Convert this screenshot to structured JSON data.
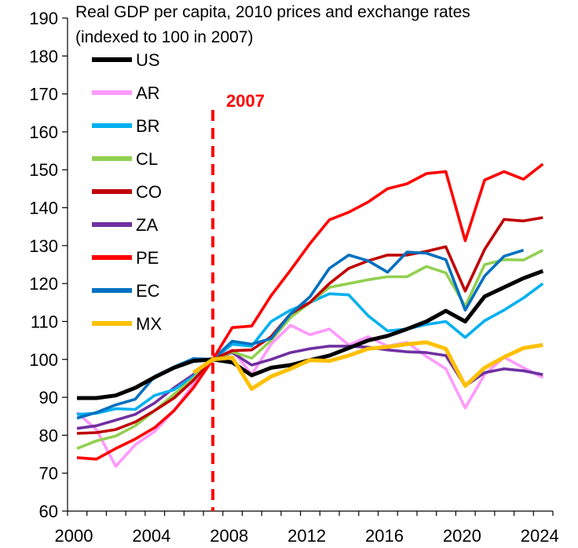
{
  "chart_data": {
    "type": "line",
    "title": "Real GDP per capita, 2010 prices and exchange rates",
    "subtitle": "(indexed to 100 in 2007)",
    "xlabel": "",
    "ylabel": "",
    "xlim": [
      2000,
      2025
    ],
    "ylim": [
      60,
      190
    ],
    "x_ticks": [
      2000,
      2004,
      2008,
      2012,
      2016,
      2020,
      2024
    ],
    "y_ticks": [
      60,
      70,
      80,
      90,
      100,
      110,
      120,
      130,
      140,
      150,
      160,
      170,
      180,
      190
    ],
    "grid": false,
    "legend_position": "top-left",
    "reference_line": {
      "x": 2007,
      "label": "2007",
      "color": "#ff0000",
      "style": "dashed"
    },
    "series": [
      {
        "name": "US",
        "color": "#000000",
        "x": [
          2000,
          2001,
          2002,
          2003,
          2004,
          2005,
          2006,
          2007,
          2008,
          2009,
          2010,
          2011,
          2012,
          2013,
          2014,
          2015,
          2016,
          2017,
          2018,
          2019,
          2020,
          2021,
          2022,
          2023,
          2024
        ],
        "values": [
          89.8,
          89.8,
          90.5,
          92.5,
          95.3,
          97.8,
          99.6,
          100,
          99.2,
          95.8,
          97.8,
          98.5,
          99.8,
          101,
          103,
          105,
          106.2,
          108,
          110,
          112.8,
          110,
          116.6,
          119,
          121.4,
          123.3
        ]
      },
      {
        "name": "AR",
        "color": "#ff99ff",
        "x": [
          2000,
          2001,
          2002,
          2003,
          2004,
          2005,
          2006,
          2007,
          2008,
          2009,
          2010,
          2011,
          2012,
          2013,
          2014,
          2015,
          2016,
          2017,
          2018,
          2019,
          2020,
          2021,
          2022,
          2023,
          2024
        ],
        "values": [
          86,
          81.5,
          71.8,
          77.5,
          81,
          86.5,
          93.5,
          100,
          102.5,
          96,
          104,
          109,
          106.5,
          108,
          103.8,
          106,
          103.5,
          104.5,
          100.8,
          97.5,
          87.2,
          96,
          100.6,
          97.8,
          95.2
        ]
      },
      {
        "name": "BR",
        "color": "#00b0f0",
        "x": [
          2000,
          2001,
          2002,
          2003,
          2004,
          2005,
          2006,
          2007,
          2008,
          2009,
          2010,
          2011,
          2012,
          2013,
          2014,
          2015,
          2016,
          2017,
          2018,
          2019,
          2020,
          2021,
          2022,
          2023,
          2024
        ],
        "values": [
          85.5,
          85.8,
          87,
          86.8,
          90.5,
          92,
          95.5,
          100,
          104,
          103.5,
          110,
          113,
          115,
          117.3,
          117,
          111.5,
          107.5,
          108,
          109.2,
          110,
          105.8,
          110.2,
          113,
          116.2,
          120
        ]
      },
      {
        "name": "CL",
        "color": "#92d050",
        "x": [
          2000,
          2001,
          2002,
          2003,
          2004,
          2005,
          2006,
          2007,
          2008,
          2009,
          2010,
          2011,
          2012,
          2013,
          2014,
          2015,
          2016,
          2017,
          2018,
          2019,
          2020,
          2021,
          2022,
          2023,
          2024
        ],
        "values": [
          76.5,
          78.5,
          79.8,
          82.5,
          86.5,
          90.8,
          95,
          100,
          102,
          100.3,
          105,
          111,
          115,
          119,
          120,
          121,
          121.8,
          121.8,
          124.5,
          122.8,
          114,
          125,
          126.3,
          126.2,
          128.8
        ]
      },
      {
        "name": "CO",
        "color": "#c00000",
        "x": [
          2000,
          2001,
          2002,
          2003,
          2004,
          2005,
          2006,
          2007,
          2008,
          2009,
          2010,
          2011,
          2012,
          2013,
          2014,
          2015,
          2016,
          2017,
          2018,
          2019,
          2020,
          2021,
          2022,
          2023,
          2024
        ],
        "values": [
          80.5,
          80.7,
          81.5,
          83.5,
          86.5,
          89.8,
          94.5,
          100,
          102.3,
          102.5,
          106,
          112,
          115,
          120,
          124,
          126,
          127.5,
          127.5,
          128.5,
          129.7,
          118,
          129,
          136.9,
          136.5,
          137.4
        ]
      },
      {
        "name": "ZA",
        "color": "#7030a0",
        "x": [
          2000,
          2001,
          2002,
          2003,
          2004,
          2005,
          2006,
          2007,
          2008,
          2009,
          2010,
          2011,
          2012,
          2013,
          2014,
          2015,
          2016,
          2017,
          2018,
          2019,
          2020,
          2021,
          2022,
          2023,
          2024
        ],
        "values": [
          81.8,
          82.5,
          84,
          85.5,
          88.5,
          92.5,
          96,
          100,
          101.8,
          98.5,
          100,
          101.8,
          102.8,
          103.5,
          103.5,
          103.2,
          102.5,
          102,
          101.8,
          101,
          93,
          96.5,
          97.5,
          97,
          96
        ]
      },
      {
        "name": "PE",
        "color": "#ff0000",
        "x": [
          2000,
          2001,
          2002,
          2003,
          2004,
          2005,
          2006,
          2007,
          2008,
          2009,
          2010,
          2011,
          2012,
          2013,
          2014,
          2015,
          2016,
          2017,
          2018,
          2019,
          2020,
          2021,
          2022,
          2023,
          2024
        ],
        "values": [
          74.1,
          73.7,
          76.5,
          79,
          82,
          86.5,
          92.5,
          100,
          108.4,
          108.8,
          116.8,
          123.5,
          130.5,
          136.8,
          138.8,
          141.5,
          145,
          146.3,
          149,
          149.5,
          131.3,
          147.3,
          149.5,
          147.5,
          151.5
        ]
      },
      {
        "name": "EC",
        "color": "#0070c0",
        "x": [
          2000,
          2001,
          2002,
          2003,
          2004,
          2005,
          2006,
          2007,
          2008,
          2009,
          2010,
          2011,
          2012,
          2013,
          2014,
          2015,
          2016,
          2017,
          2018,
          2019,
          2020,
          2021,
          2022,
          2023
        ],
        "values": [
          84.5,
          86,
          88,
          89.5,
          95.5,
          98,
          100.2,
          100,
          104.8,
          104,
          105.5,
          112,
          116.5,
          124,
          127.5,
          126,
          123,
          128.3,
          128,
          126.3,
          113,
          122,
          127.2,
          128.8
        ]
      },
      {
        "name": "MX",
        "color": "#ffc000",
        "x": [
          2006,
          2007,
          2008,
          2009,
          2010,
          2011,
          2012,
          2013,
          2014,
          2015,
          2016,
          2017,
          2018,
          2019,
          2020,
          2021,
          2022,
          2023,
          2024
        ],
        "values": [
          96.5,
          100,
          100.5,
          92.2,
          95.5,
          97.5,
          99.8,
          99.6,
          101,
          102.8,
          103.3,
          104,
          104.5,
          102.8,
          93,
          97.8,
          100.6,
          103,
          103.8
        ]
      }
    ]
  }
}
